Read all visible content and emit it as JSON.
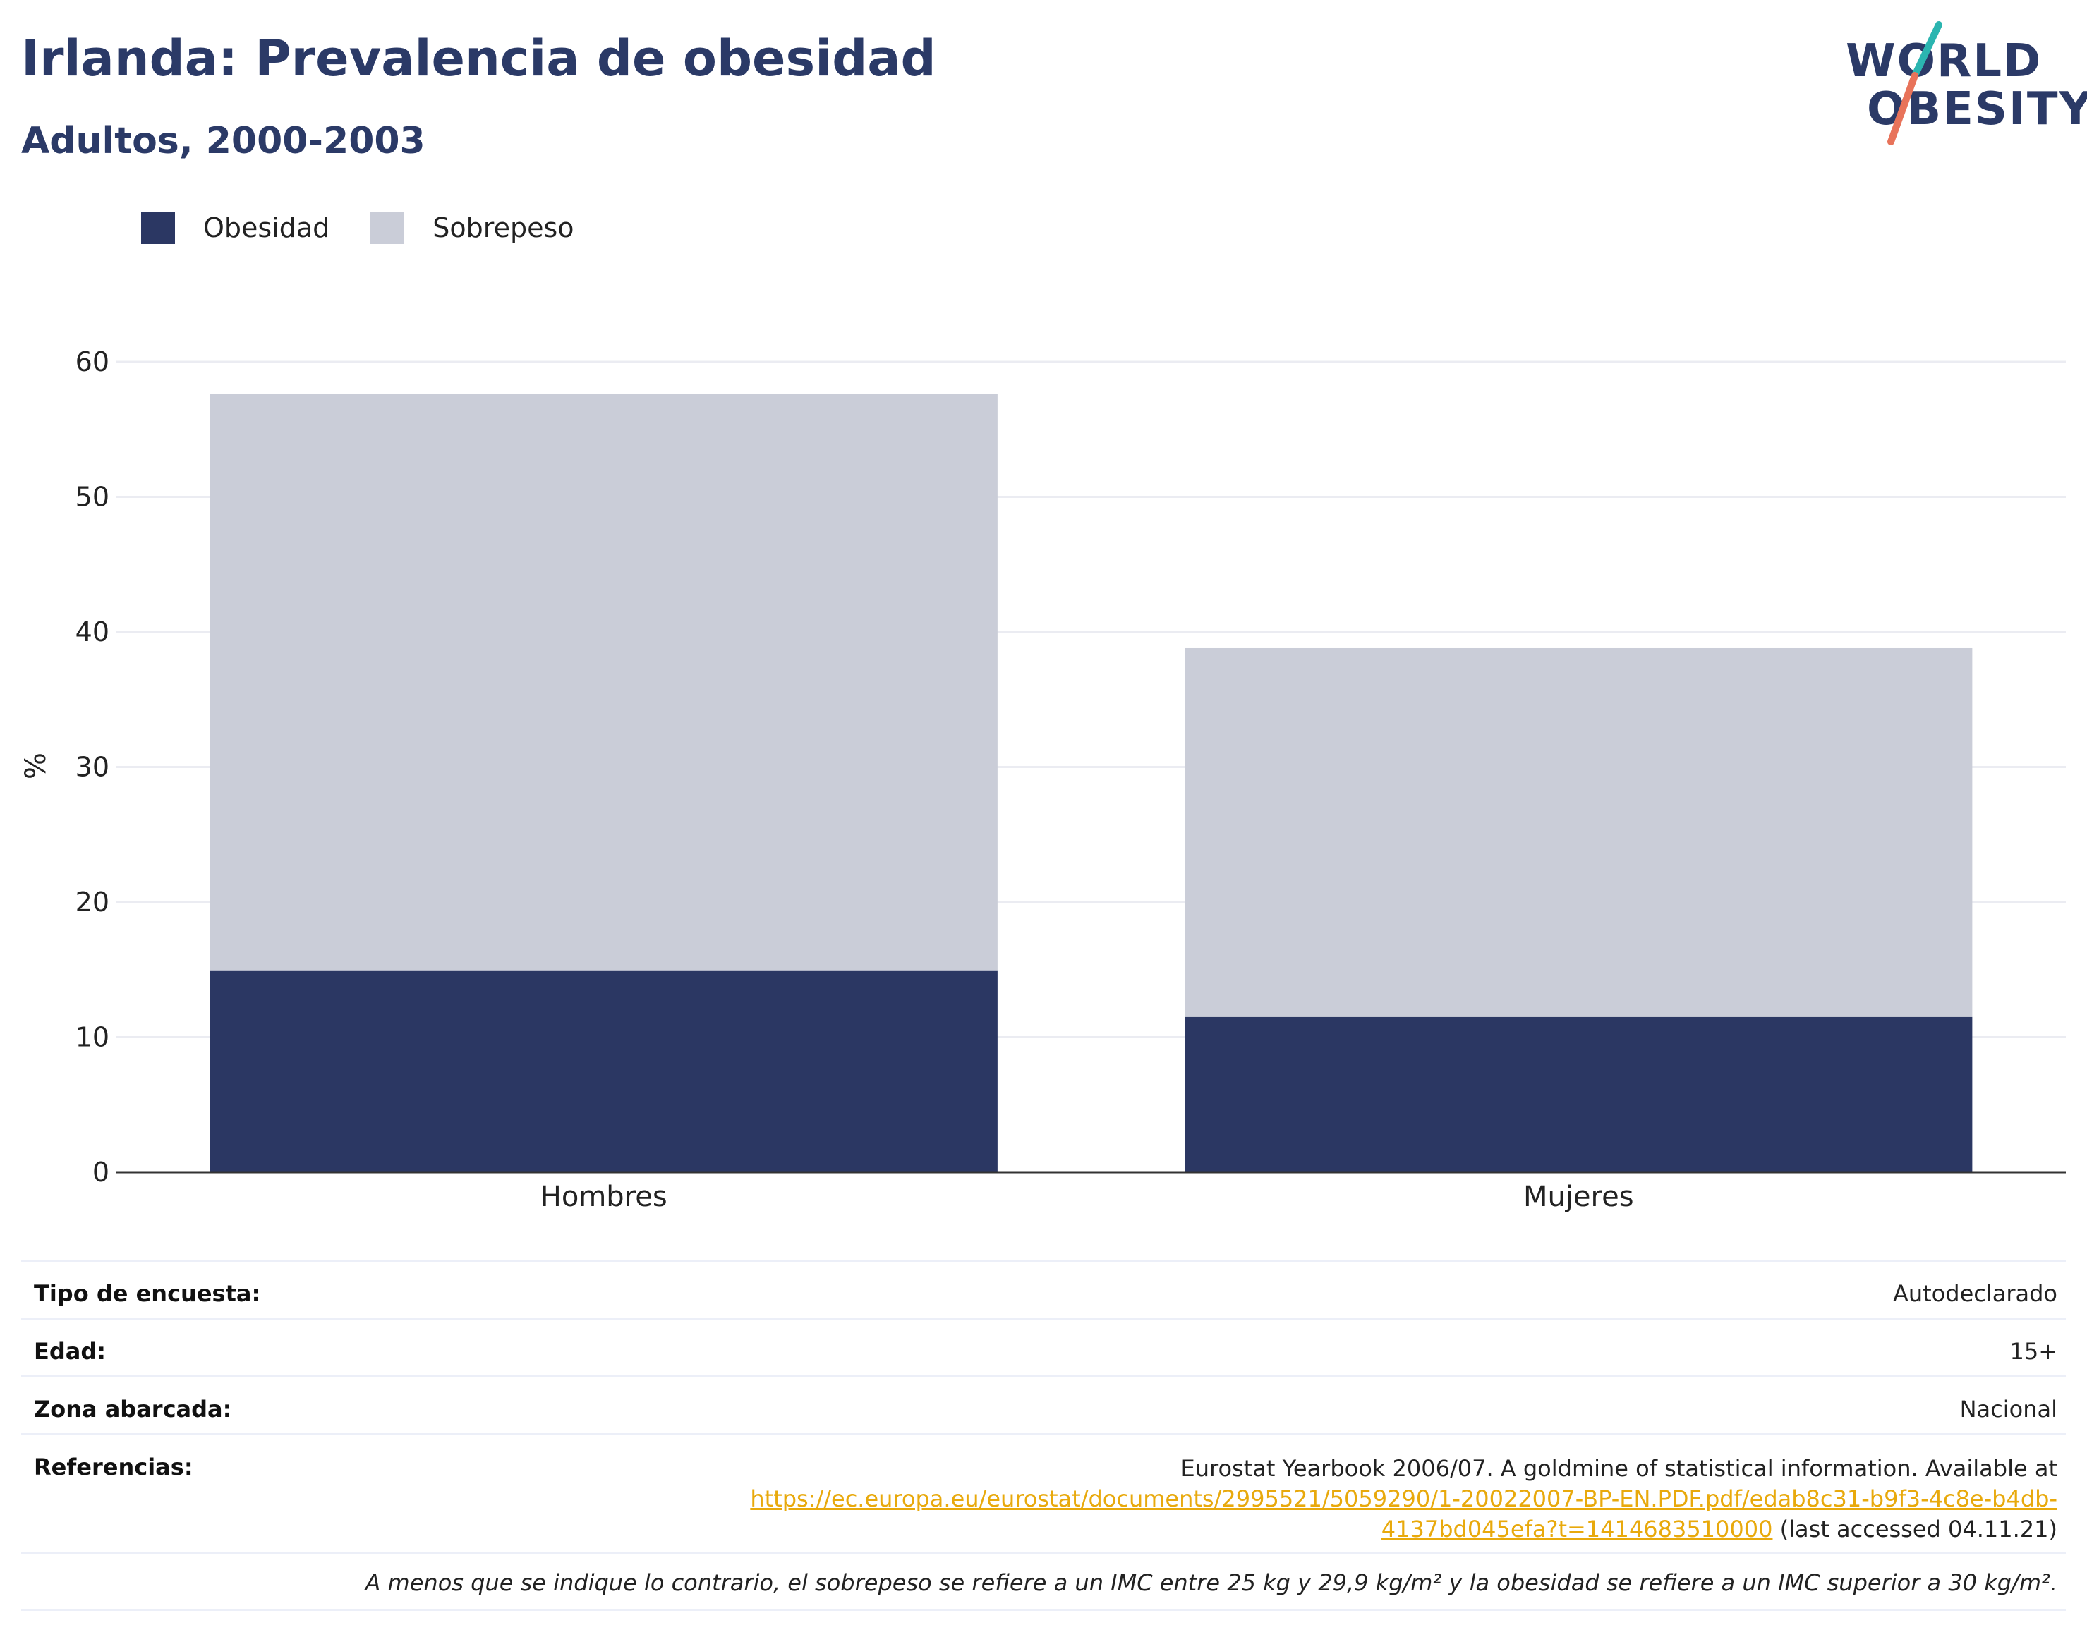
{
  "header": {
    "title": "Irlanda: Prevalencia de obesidad",
    "subtitle": "Adultos, 2000-2003"
  },
  "logo": {
    "line1": "WORLD",
    "line2": "OBESITY",
    "colors": {
      "text": "#2b3a67",
      "slash_top": "#2bb5b0",
      "slash_bottom": "#e8735a"
    }
  },
  "colors": {
    "obesidad": "#2b3763",
    "sobrepeso": "#cacdd8",
    "grid": "#ebecf2",
    "axis": "#333333"
  },
  "chart_data": {
    "type": "bar",
    "stacked": true,
    "categories": [
      "Hombres",
      "Mujeres"
    ],
    "series": [
      {
        "name": "Obesidad",
        "values": [
          14.9,
          11.5
        ]
      },
      {
        "name": "Sobrepeso",
        "values": [
          42.7,
          27.3
        ]
      }
    ],
    "ylabel": "%",
    "ylim": [
      0,
      60
    ],
    "yticks": [
      0,
      10,
      20,
      30,
      40,
      50,
      60
    ],
    "grid": true,
    "legend": "top-left"
  },
  "info": {
    "rows": [
      {
        "label": "Tipo de encuesta:",
        "value": "Autodeclarado"
      },
      {
        "label": "Edad:",
        "value": "15+"
      },
      {
        "label": "Zona abarcada:",
        "value": "Nacional"
      }
    ],
    "references": {
      "label": "Referencias:",
      "text": "Eurostat Yearbook 2006/07. A goldmine of statistical information. Available at",
      "link": "https://ec.europa.eu/eurostat/documents/2995521/5059290/1-20022007-BP-EN.PDF.pdf/edab8c31-b9f3-4c8e-b4db-4137bd045efa?t=1414683510000",
      "link_part1": "https://ec.europa.eu/eurostat/documents/2995521/5059290/1-20022007-BP-EN.PDF.pdf/edab8c31-b9f3-4c8e-b4db-",
      "link_part2": "4137bd045efa?t=1414683510000",
      "suffix": " (last accessed 04.11.21)"
    },
    "note": "A menos que se indique lo contrario, el sobrepeso se refiere a un IMC entre 25 kg y 29,9 kg/m² y la obesidad se refiere a un IMC superior a 30 kg/m²."
  }
}
